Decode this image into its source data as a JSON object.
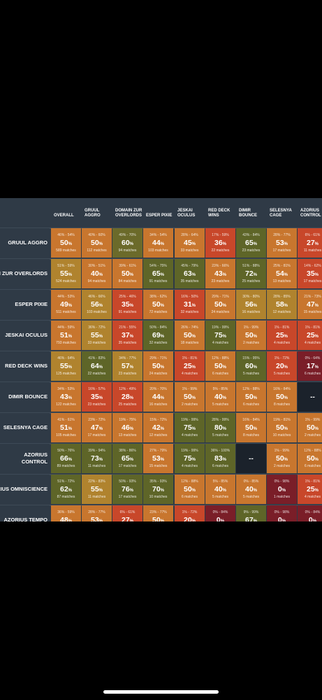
{
  "chart_data": {
    "type": "heatmap",
    "columns": [
      "OVERALL",
      "GRUUL AGGRO",
      "DOMAIN ZUR OVERLORDS",
      "ESPER PIXIE",
      "JESKAI OCULUS",
      "RED DECK WINS",
      "DIMIR BOUNCE",
      "SELESNYA CAGE",
      "AZORIUS CONTROL"
    ],
    "rows": [
      {
        "label": "GRUUL AGGRO",
        "cells": [
          {
            "ci": "46% - 54%",
            "pct": 50,
            "matches": "589 matches",
            "color": "#c8762e"
          },
          {
            "ci": "40% - 60%",
            "pct": 50,
            "matches": "112 matches",
            "color": "#c8762e"
          },
          {
            "ci": "49% - 70%",
            "pct": 60,
            "matches": "94 matches",
            "color": "#6b6a2a"
          },
          {
            "ci": "34% - 54%",
            "pct": 44,
            "matches": "103 matches",
            "color": "#c8762e"
          },
          {
            "ci": "28% - 64%",
            "pct": 45,
            "matches": "33 matches",
            "color": "#c8762e"
          },
          {
            "ci": "17% - 59%",
            "pct": 36,
            "matches": "22 matches",
            "color": "#c8472a"
          },
          {
            "ci": "43% - 84%",
            "pct": 65,
            "matches": "23 matches",
            "color": "#5e6528"
          },
          {
            "ci": "28% - 77%",
            "pct": 53,
            "matches": "17 matches",
            "color": "#c8762e"
          },
          {
            "ci": "6% - 61%",
            "pct": 27,
            "matches": "11 matches",
            "color": "#c8472a"
          }
        ]
      },
      {
        "label": "DOMAIN ZUR OVERLORDS",
        "cells": [
          {
            "ci": "51% - 59%",
            "pct": 55,
            "matches": "524 matches",
            "color": "#b0832e"
          },
          {
            "ci": "30% - 51%",
            "pct": 40,
            "matches": "94 matches",
            "color": "#c8762e"
          },
          {
            "ci": "39% - 61%",
            "pct": 50,
            "matches": "84 matches",
            "color": "#c8762e"
          },
          {
            "ci": "54% - 75%",
            "pct": 65,
            "matches": "91 matches",
            "color": "#5e6528"
          },
          {
            "ci": "45% - 79%",
            "pct": 63,
            "matches": "35 matches",
            "color": "#5e6528"
          },
          {
            "ci": "23% - 66%",
            "pct": 43,
            "matches": "23 matches",
            "color": "#c8762e"
          },
          {
            "ci": "51% - 88%",
            "pct": 72,
            "matches": "25 matches",
            "color": "#5e6528"
          },
          {
            "ci": "25% - 81%",
            "pct": 54,
            "matches": "13 matches",
            "color": "#c8762e"
          },
          {
            "ci": "14% - 62%",
            "pct": 35,
            "matches": "17 matches",
            "color": "#c8472a"
          }
        ]
      },
      {
        "label": "ESPER PIXIE",
        "cells": [
          {
            "ci": "44% - 53%",
            "pct": 49,
            "matches": "511 matches",
            "color": "#c8762e"
          },
          {
            "ci": "46% - 66%",
            "pct": 56,
            "matches": "103 matches",
            "color": "#b0832e"
          },
          {
            "ci": "25% - 46%",
            "pct": 35,
            "matches": "91 matches",
            "color": "#c8472a"
          },
          {
            "ci": "38% - 62%",
            "pct": 50,
            "matches": "72 matches",
            "color": "#c8762e"
          },
          {
            "ci": "16% - 50%",
            "pct": 31,
            "matches": "32 matches",
            "color": "#c8472a"
          },
          {
            "ci": "29% - 71%",
            "pct": 50,
            "matches": "24 matches",
            "color": "#c8762e"
          },
          {
            "ci": "30% - 80%",
            "pct": 56,
            "matches": "16 matches",
            "color": "#b0832e"
          },
          {
            "ci": "28% - 85%",
            "pct": 58,
            "matches": "12 matches",
            "color": "#b0832e"
          },
          {
            "ci": "21% - 73%",
            "pct": 47,
            "matches": "15 matches",
            "color": "#c8762e"
          }
        ]
      },
      {
        "label": "JESKAI OCULUS",
        "cells": [
          {
            "ci": "44% - 59%",
            "pct": 51,
            "matches": "793 matches",
            "color": "#c8762e"
          },
          {
            "ci": "36% - 72%",
            "pct": 55,
            "matches": "33 matches",
            "color": "#b0832e"
          },
          {
            "ci": "21% - 55%",
            "pct": 37,
            "matches": "35 matches",
            "color": "#c8472a"
          },
          {
            "ci": "50% - 84%",
            "pct": 69,
            "matches": "32 matches",
            "color": "#5e6528"
          },
          {
            "ci": "26% - 74%",
            "pct": 50,
            "matches": "18 matches",
            "color": "#c8762e"
          },
          {
            "ci": "19% - 99%",
            "pct": 75,
            "matches": "4 matches",
            "color": "#5e6528"
          },
          {
            "ci": "1% - 99%",
            "pct": 50,
            "matches": "2 matches",
            "color": "#c8762e"
          },
          {
            "ci": "1% - 81%",
            "pct": 25,
            "matches": "4 matches",
            "color": "#c8472a"
          },
          {
            "ci": "1% - 81%",
            "pct": 25,
            "matches": "4 matches",
            "color": "#c8472a"
          }
        ]
      },
      {
        "label": "RED DECK WINS",
        "cells": [
          {
            "ci": "46% - 64%",
            "pct": 55,
            "matches": "125 matches",
            "color": "#b0832e"
          },
          {
            "ci": "41% - 83%",
            "pct": 64,
            "matches": "22 matches",
            "color": "#5e6528"
          },
          {
            "ci": "34% - 77%",
            "pct": 57,
            "matches": "23 matches",
            "color": "#b0832e"
          },
          {
            "ci": "29% - 71%",
            "pct": 50,
            "matches": "24 matches",
            "color": "#c8762e"
          },
          {
            "ci": "1% - 81%",
            "pct": 25,
            "matches": "4 matches",
            "color": "#c8472a"
          },
          {
            "ci": "12% - 88%",
            "pct": 50,
            "matches": "6 matches",
            "color": "#c8762e"
          },
          {
            "ci": "15% - 95%",
            "pct": 60,
            "matches": "5 matches",
            "color": "#5e6528"
          },
          {
            "ci": "1% - 72%",
            "pct": 20,
            "matches": "5 matches",
            "color": "#c8472a"
          },
          {
            "ci": "0% - 64%",
            "pct": 17,
            "matches": "6 matches",
            "color": "#7a1e28"
          }
        ]
      },
      {
        "label": "DIMIR BOUNCE",
        "cells": [
          {
            "ci": "34% - 53%",
            "pct": 43,
            "matches": "122 matches",
            "color": "#c8762e"
          },
          {
            "ci": "16% - 57%",
            "pct": 35,
            "matches": "23 matches",
            "color": "#c8472a"
          },
          {
            "ci": "12% - 49%",
            "pct": 28,
            "matches": "25 matches",
            "color": "#c8472a"
          },
          {
            "ci": "20% - 70%",
            "pct": 44,
            "matches": "16 matches",
            "color": "#c8762e"
          },
          {
            "ci": "1% - 99%",
            "pct": 50,
            "matches": "2 matches",
            "color": "#c8762e"
          },
          {
            "ci": "5% - 85%",
            "pct": 40,
            "matches": "5 matches",
            "color": "#c8762e"
          },
          {
            "ci": "12% - 88%",
            "pct": 50,
            "matches": "6 matches",
            "color": "#c8762e"
          },
          {
            "ci": "16% - 84%",
            "pct": 50,
            "matches": "8 matches",
            "color": "#c8762e"
          },
          {
            "na": "--",
            "color": "#1b222b"
          }
        ]
      },
      {
        "label": "SELESNYA CAGE",
        "cells": [
          {
            "ci": "41% - 61%",
            "pct": 51,
            "matches": "105 matches",
            "color": "#c8762e"
          },
          {
            "ci": "23% - 72%",
            "pct": 47,
            "matches": "17 matches",
            "color": "#c8762e"
          },
          {
            "ci": "19% - 75%",
            "pct": 46,
            "matches": "13 matches",
            "color": "#c8762e"
          },
          {
            "ci": "15% - 72%",
            "pct": 42,
            "matches": "12 matches",
            "color": "#c8762e"
          },
          {
            "ci": "19% - 99%",
            "pct": 75,
            "matches": "4 matches",
            "color": "#5e6528"
          },
          {
            "ci": "28% - 99%",
            "pct": 80,
            "matches": "5 matches",
            "color": "#5e6528"
          },
          {
            "ci": "16% - 84%",
            "pct": 50,
            "matches": "8 matches",
            "color": "#c8762e"
          },
          {
            "ci": "19% - 81%",
            "pct": 50,
            "matches": "10 matches",
            "color": "#c8762e"
          },
          {
            "ci": "1% - 99%",
            "pct": 50,
            "matches": "2 matches",
            "color": "#c8762e"
          }
        ]
      },
      {
        "label": "AZORIUS CONTROL",
        "cells": [
          {
            "ci": "50% - 76%",
            "pct": 66,
            "matches": "89 matches",
            "color": "#5e6528"
          },
          {
            "ci": "39% - 94%",
            "pct": 73,
            "matches": "11 matches",
            "color": "#5e6528"
          },
          {
            "ci": "38% - 86%",
            "pct": 65,
            "matches": "17 matches",
            "color": "#5e6528"
          },
          {
            "ci": "27% - 79%",
            "pct": 53,
            "matches": "15 matches",
            "color": "#c8762e"
          },
          {
            "ci": "19% - 99%",
            "pct": 75,
            "matches": "4 matches",
            "color": "#5e6528"
          },
          {
            "ci": "36% - 100%",
            "pct": 83,
            "matches": "6 matches",
            "color": "#5e6528"
          },
          {
            "na": "--",
            "color": "#1b222b"
          },
          {
            "ci": "1% - 99%",
            "pct": 50,
            "matches": "2 matches",
            "color": "#c8762e"
          },
          {
            "ci": "12% - 88%",
            "pct": 50,
            "matches": "6 matches",
            "color": "#c8762e"
          }
        ]
      },
      {
        "label": "AZORIUS OMNISCIENCE",
        "cells": [
          {
            "ci": "51% - 72%",
            "pct": 62,
            "matches": "87 matches",
            "color": "#5e6528"
          },
          {
            "ci": "22% - 83%",
            "pct": 55,
            "matches": "11 matches",
            "color": "#b0832e"
          },
          {
            "ci": "50% - 93%",
            "pct": 76,
            "matches": "17 matches",
            "color": "#5e6528"
          },
          {
            "ci": "35% - 93%",
            "pct": 70,
            "matches": "10 matches",
            "color": "#5e6528"
          },
          {
            "ci": "12% - 88%",
            "pct": 50,
            "matches": "6 matches",
            "color": "#c8762e"
          },
          {
            "ci": "5% - 85%",
            "pct": 40,
            "matches": "5 matches",
            "color": "#c8762e"
          },
          {
            "ci": "0% - 85%",
            "pct": 40,
            "matches": "5 matches",
            "color": "#c8762e"
          },
          {
            "ci": "0% - 98%",
            "pct": 0,
            "matches": "1 matches",
            "color": "#7a1e28"
          },
          {
            "ci": "1% - 81%",
            "pct": 25,
            "matches": "4 matches",
            "color": "#c8472a"
          }
        ]
      },
      {
        "label": "AZORIUS TEMPO",
        "cells": [
          {
            "ci": "36% - 59%",
            "pct": 48,
            "matches": "",
            "color": "#c8762e"
          },
          {
            "ci": "28% - 77%",
            "pct": 53,
            "matches": "",
            "color": "#c8762e"
          },
          {
            "ci": "6% - 61%",
            "pct": 27,
            "matches": "",
            "color": "#c8472a"
          },
          {
            "ci": "23% - 77%",
            "pct": 50,
            "matches": "",
            "color": "#c8762e"
          },
          {
            "ci": "1% - 72%",
            "pct": 20,
            "matches": "",
            "color": "#c8472a"
          },
          {
            "ci": "0% - 84%",
            "pct": 0,
            "matches": "",
            "color": "#7a1e28"
          },
          {
            "ci": "9% - 99%",
            "pct": 67,
            "matches": "",
            "color": "#5e6528"
          },
          {
            "ci": "0% - 98%",
            "pct": 0,
            "matches": "",
            "color": "#7a1e28"
          },
          {
            "ci": "0% - 84%",
            "pct": 0,
            "matches": "",
            "color": "#7a1e28"
          }
        ]
      }
    ]
  }
}
